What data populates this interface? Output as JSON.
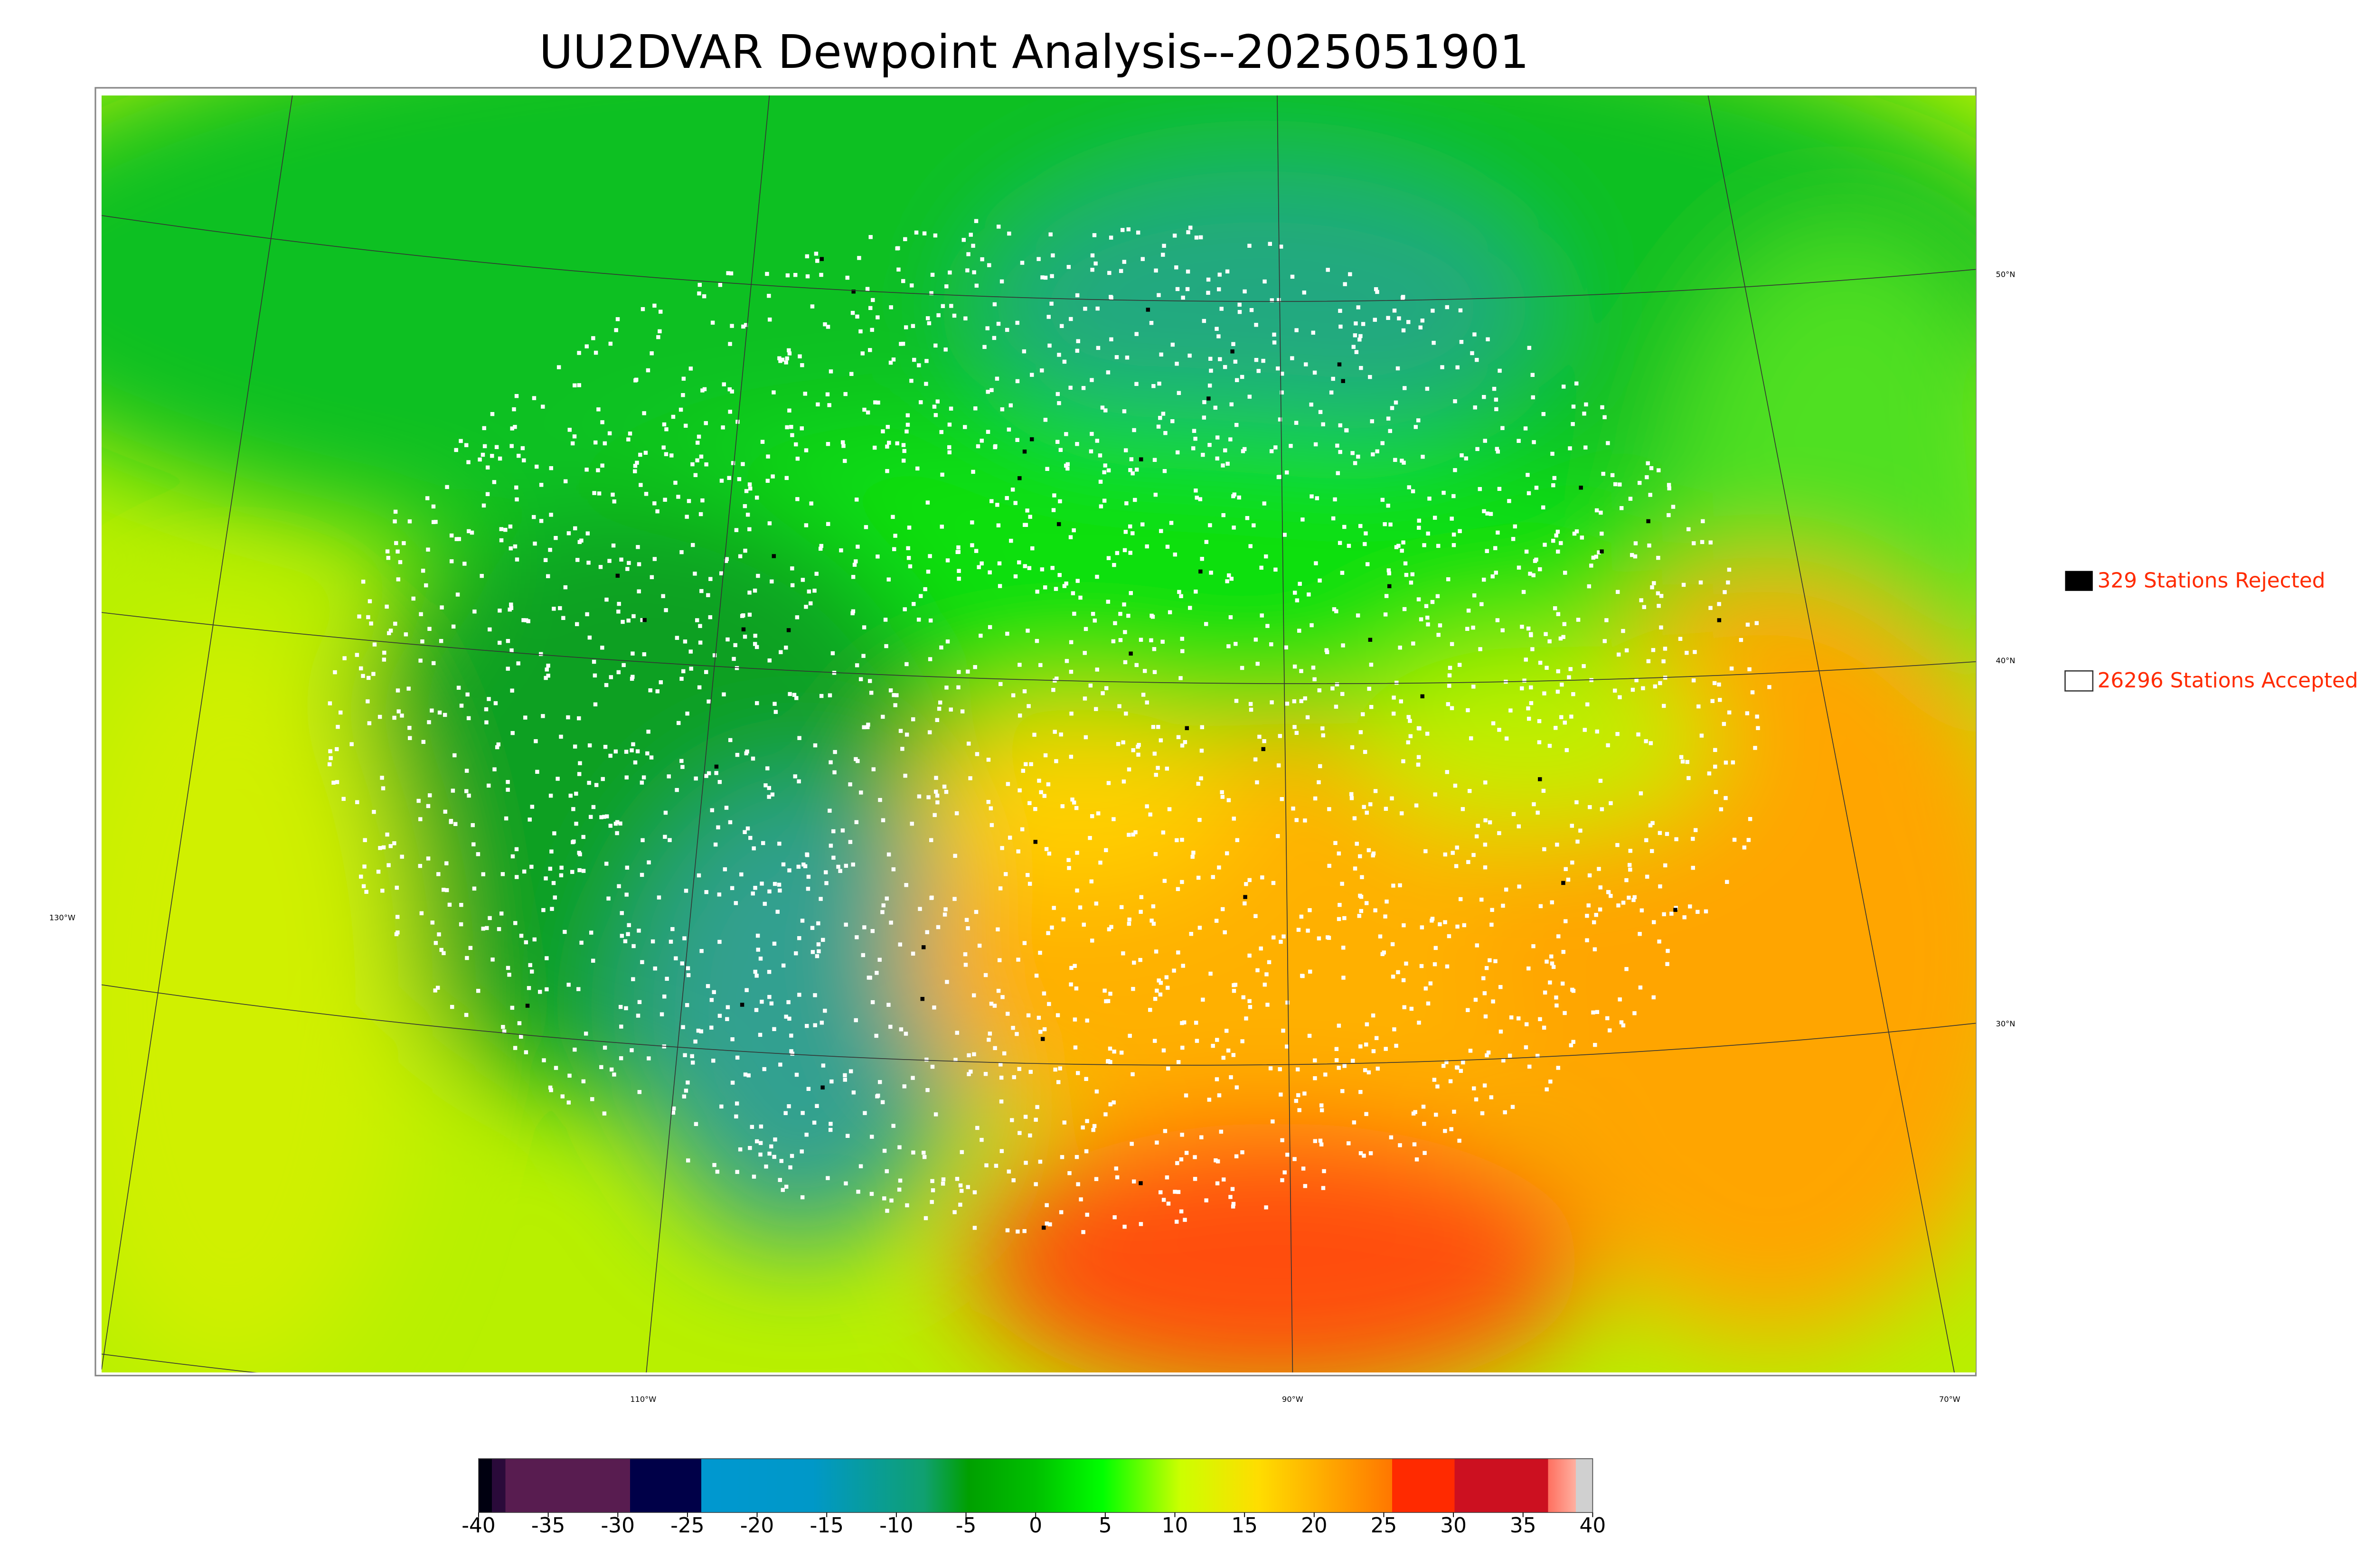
{
  "title": "UU2DVAR Dewpoint Analysis--2025051901",
  "map": {
    "lat_labels": [
      "50°N",
      "40°N",
      "30°N"
    ],
    "lon_labels": [
      "130°W",
      "110°W",
      "90°W",
      "70°W"
    ]
  },
  "legend": {
    "rejected": "329 Stations Rejected",
    "accepted": "26296 Stations Accepted"
  },
  "colorbar": {
    "lim": [
      -40,
      40
    ],
    "ticks": [
      -40,
      -35,
      -30,
      -25,
      -20,
      -15,
      -10,
      -5,
      0,
      5,
      10,
      15,
      20,
      25,
      30,
      35,
      40
    ]
  }
}
